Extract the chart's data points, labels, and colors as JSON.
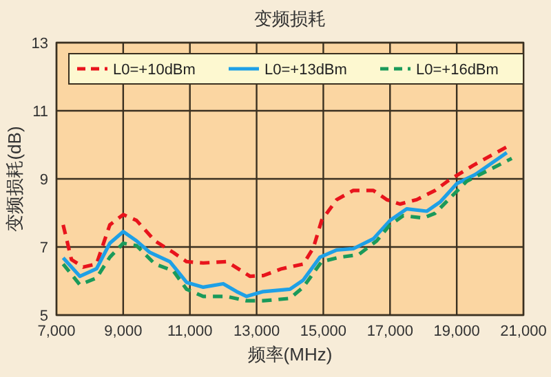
{
  "chart_data": {
    "type": "line",
    "title": "变频损耗",
    "xlabel": "频率(MHz)",
    "ylabel": "变频损耗(dB)",
    "xlim": [
      7000,
      21000
    ],
    "ylim": [
      5,
      13
    ],
    "xticks": [
      {
        "value": 7000,
        "label": "7,000"
      },
      {
        "value": 9000,
        "label": "9,000"
      },
      {
        "value": 11000,
        "label": "11,000"
      },
      {
        "value": 13000,
        "label": "13,000"
      },
      {
        "value": 15000,
        "label": "15,000"
      },
      {
        "value": 17000,
        "label": "17,000"
      },
      {
        "value": 19000,
        "label": "19,000"
      },
      {
        "value": 21000,
        "label": "21,000"
      }
    ],
    "yticks": [
      5,
      7,
      9,
      11,
      13
    ],
    "grid": true,
    "legend": "top",
    "series": [
      {
        "name": "L0=+10dBm",
        "color": "#e8141c",
        "line_style": "dashed",
        "x": [
          7200,
          7450,
          7800,
          8200,
          8600,
          9000,
          9400,
          9950,
          10500,
          10900,
          11400,
          12100,
          12450,
          12800,
          13200,
          13750,
          14400,
          14700,
          14950,
          15400,
          15900,
          16500,
          16900,
          17300,
          17800,
          18350,
          18750,
          19500,
          20500
        ],
        "values": [
          7.65,
          6.63,
          6.41,
          6.5,
          7.65,
          7.95,
          7.78,
          7.18,
          6.84,
          6.57,
          6.53,
          6.57,
          6.36,
          6.14,
          6.16,
          6.36,
          6.5,
          6.97,
          7.78,
          8.39,
          8.66,
          8.66,
          8.39,
          8.26,
          8.39,
          8.66,
          8.95,
          9.4,
          9.94
        ]
      },
      {
        "name": "L0=+13dBm",
        "color": "#1ea0e6",
        "line_style": "solid",
        "x": [
          7200,
          7700,
          8200,
          8600,
          9000,
          9400,
          9800,
          10400,
          10900,
          11400,
          12000,
          12400,
          12700,
          13200,
          14000,
          14400,
          14900,
          15400,
          15900,
          16500,
          17000,
          17500,
          18100,
          18500,
          19000,
          19560,
          20500
        ],
        "values": [
          6.68,
          6.14,
          6.36,
          7.11,
          7.45,
          7.18,
          6.84,
          6.57,
          5.96,
          5.82,
          5.92,
          5.69,
          5.55,
          5.69,
          5.76,
          6.03,
          6.7,
          6.91,
          6.95,
          7.24,
          7.78,
          8.12,
          8.05,
          8.32,
          8.86,
          9.13,
          9.77
        ]
      },
      {
        "name": "L0=+16dBm",
        "color": "#1a9a5a",
        "line_style": "dashed",
        "x": [
          7200,
          7700,
          8200,
          8600,
          9000,
          9400,
          9950,
          10500,
          10900,
          11400,
          12100,
          12700,
          13200,
          14000,
          14400,
          14950,
          15500,
          16050,
          16600,
          17000,
          17400,
          18000,
          18350,
          18750,
          19300,
          20650
        ],
        "values": [
          6.5,
          5.89,
          6.09,
          6.7,
          7.11,
          7.04,
          6.5,
          6.3,
          5.76,
          5.55,
          5.55,
          5.42,
          5.42,
          5.49,
          5.82,
          6.57,
          6.7,
          6.77,
          7.18,
          7.65,
          7.92,
          7.85,
          7.99,
          8.39,
          8.93,
          9.6
        ]
      }
    ]
  }
}
